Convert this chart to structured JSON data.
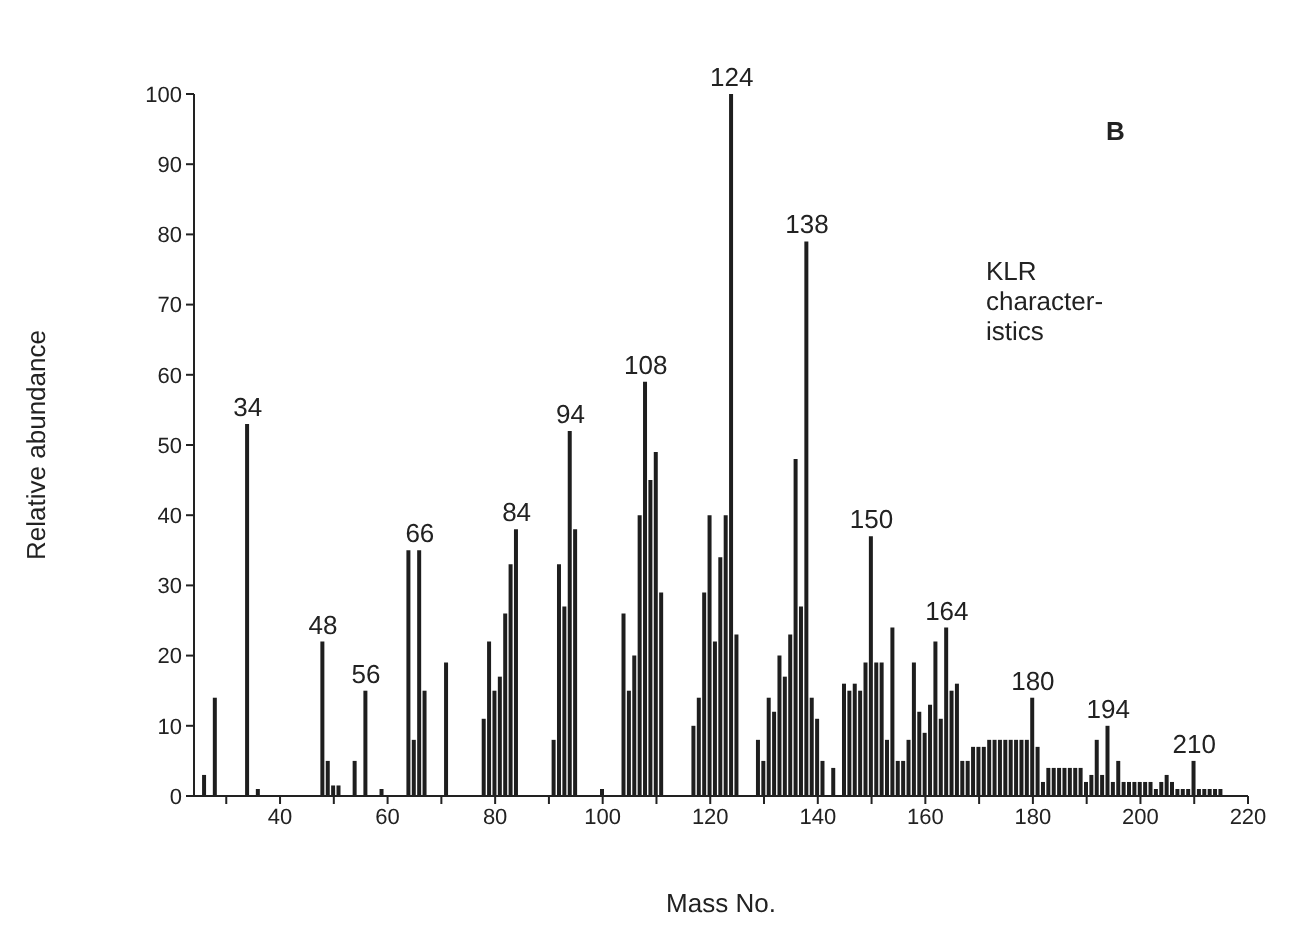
{
  "chart_data": {
    "type": "bar",
    "xlabel": "Mass No.",
    "ylabel": "Relative abundance",
    "x": [
      26,
      28,
      34,
      36,
      48,
      49,
      50,
      51,
      54,
      56,
      59,
      64,
      65,
      66,
      67,
      71,
      78,
      79,
      80,
      81,
      82,
      83,
      84,
      91,
      92,
      93,
      94,
      95,
      100,
      104,
      105,
      106,
      107,
      108,
      109,
      110,
      111,
      117,
      118,
      119,
      120,
      121,
      122,
      123,
      124,
      125,
      129,
      130,
      131,
      132,
      133,
      134,
      135,
      136,
      137,
      138,
      139,
      140,
      141,
      143,
      145,
      146,
      147,
      148,
      149,
      150,
      151,
      152,
      153,
      154,
      155,
      156,
      157,
      158,
      159,
      160,
      161,
      162,
      163,
      164,
      165,
      166,
      167,
      168,
      169,
      170,
      171,
      172,
      173,
      174,
      175,
      176,
      177,
      178,
      179,
      180,
      181,
      182,
      183,
      184,
      185,
      186,
      187,
      188,
      189,
      190,
      191,
      192,
      193,
      194,
      195,
      196,
      197,
      198,
      199,
      200,
      201,
      202,
      203,
      204,
      205,
      206,
      207,
      208,
      209,
      210,
      211,
      212,
      213,
      214,
      215
    ],
    "values": [
      3,
      14,
      53,
      1,
      22,
      5,
      1.5,
      1.5,
      5,
      15,
      1,
      35,
      8,
      35,
      15,
      19,
      11,
      22,
      15,
      17,
      26,
      33,
      38,
      8,
      33,
      27,
      52,
      38,
      1,
      26,
      15,
      20,
      40,
      59,
      45,
      49,
      29,
      10,
      14,
      29,
      40,
      22,
      34,
      40,
      100,
      23,
      8,
      5,
      14,
      12,
      20,
      17,
      23,
      48,
      27,
      79,
      14,
      11,
      5,
      4,
      16,
      15,
      16,
      15,
      19,
      37,
      19,
      19,
      8,
      24,
      5,
      5,
      8,
      19,
      12,
      9,
      13,
      22,
      11,
      24,
      15,
      16,
      5,
      5,
      7,
      7,
      7,
      8,
      8,
      8,
      8,
      8,
      8,
      8,
      8,
      14,
      7,
      2,
      4,
      4,
      4,
      4,
      4,
      4,
      4,
      2,
      3,
      8,
      3,
      10,
      2,
      5,
      2,
      2,
      2,
      2,
      2,
      2,
      1,
      2,
      3,
      2,
      1,
      1,
      1,
      5,
      1,
      1,
      1,
      1,
      1
    ],
    "color": "#1e1e1e",
    "xlim": [
      24,
      220
    ],
    "xticks": [
      {
        "value": 30,
        "label": null
      },
      40,
      {
        "value": 50,
        "label": null
      },
      60,
      {
        "value": 70,
        "label": null
      },
      80,
      {
        "value": 90,
        "label": null
      },
      100,
      {
        "value": 110,
        "label": null
      },
      120,
      {
        "value": 130,
        "label": null
      },
      140,
      {
        "value": 150,
        "label": null
      },
      160,
      {
        "value": 170,
        "label": null
      },
      180,
      {
        "value": 190,
        "label": null
      },
      200,
      {
        "value": 210,
        "label": null
      },
      220
    ],
    "ylim": [
      0,
      100
    ],
    "yticks": [
      0,
      10,
      20,
      30,
      40,
      50,
      60,
      70,
      80,
      90,
      100
    ],
    "grid": false,
    "legend": false,
    "annotations": [
      {
        "text": "34",
        "x": 34,
        "y": 53
      },
      {
        "text": "48",
        "x": 48,
        "y": 22
      },
      {
        "text": "56",
        "x": 56,
        "y": 15
      },
      {
        "text": "66",
        "x": 66,
        "y": 35
      },
      {
        "text": "84",
        "x": 84,
        "y": 38
      },
      {
        "text": "94",
        "x": 94,
        "y": 52
      },
      {
        "text": "108",
        "x": 108,
        "y": 59
      },
      {
        "text": "124",
        "x": 124,
        "y": 100
      },
      {
        "text": "138",
        "x": 138,
        "y": 79
      },
      {
        "text": "150",
        "x": 150,
        "y": 37
      },
      {
        "text": "164",
        "x": 164,
        "y": 24
      },
      {
        "text": "180",
        "x": 180,
        "y": 14
      },
      {
        "text": "194",
        "x": 194,
        "y": 10
      },
      {
        "text": "210",
        "x": 210,
        "y": 5
      },
      "B",
      "KLR\ncharacter-\nistics"
    ]
  }
}
